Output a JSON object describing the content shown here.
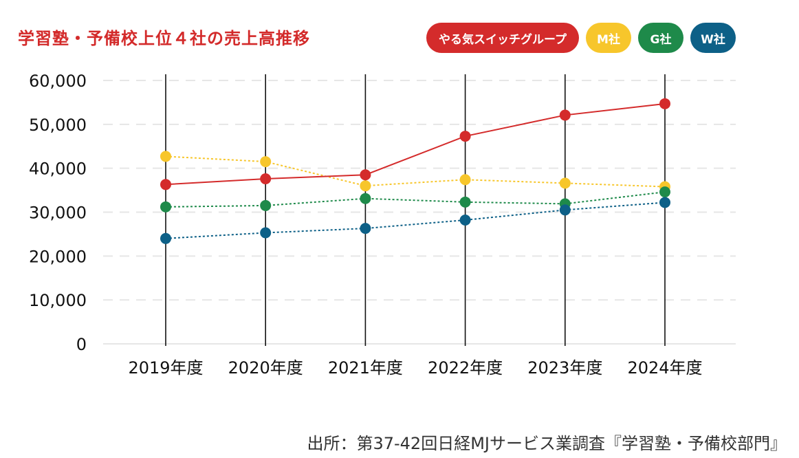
{
  "header": {
    "title": "学習塾・予備校上位４社の売上高推移"
  },
  "colors": {
    "yaruki": "#d42b2b",
    "m": "#f7c62b",
    "g": "#1e8a4a",
    "w": "#0d6087",
    "grid": "#e6e6e6",
    "axis": "#111111"
  },
  "legend": [
    {
      "label": "やる気スイッチグループ",
      "color": "#d42b2b"
    },
    {
      "label": "M社",
      "color": "#f7c62b"
    },
    {
      "label": "G社",
      "color": "#1e8a4a"
    },
    {
      "label": "W社",
      "color": "#0d6087"
    }
  ],
  "footer": {
    "source": "出所：第37-42回日経MJサービス業調査『学習塾・予備校部門』"
  },
  "chart_data": {
    "type": "line",
    "title": "学習塾・予備校上位４社の売上高推移",
    "categories": [
      "2019年度",
      "2020年度",
      "2021年度",
      "2022年度",
      "2023年度",
      "2024年度"
    ],
    "ylim": [
      0,
      60000
    ],
    "yticks": [
      0,
      10000,
      20000,
      30000,
      40000,
      50000,
      60000
    ],
    "ytick_labels": [
      "0",
      "10,000",
      "20,000",
      "30,000",
      "40,000",
      "50,000",
      "60,000"
    ],
    "xlabel": "",
    "ylabel": "",
    "grid": "horizontal dashed",
    "legend_position": "top-right",
    "series": [
      {
        "name": "やる気スイッチグループ",
        "color": "#d42b2b",
        "line": "solid",
        "values": [
          36300,
          37600,
          38500,
          47300,
          52100,
          54700
        ]
      },
      {
        "name": "M社",
        "color": "#f7c62b",
        "line": "dotted",
        "values": [
          42700,
          41500,
          36000,
          37400,
          36600,
          35800
        ]
      },
      {
        "name": "G社",
        "color": "#1e8a4a",
        "line": "dotted",
        "values": [
          31200,
          31500,
          33100,
          32300,
          31900,
          34600
        ]
      },
      {
        "name": "W社",
        "color": "#0d6087",
        "line": "dotted",
        "values": [
          24000,
          25300,
          26300,
          28200,
          30500,
          32200
        ]
      }
    ]
  }
}
